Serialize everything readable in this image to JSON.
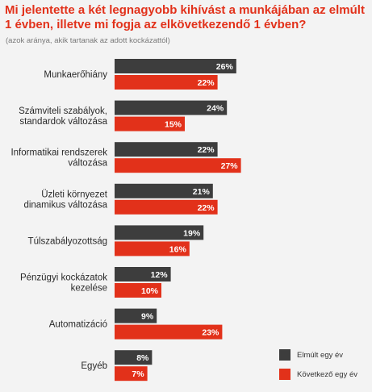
{
  "chart_data": {
    "type": "bar",
    "orientation": "horizontal",
    "title": "Mi jelentette a két legnagyobb kihívást a munkájában az elmúlt 1 évben, illetve mi fogja az elkövetkezendő 1 évben?",
    "subtitle": "(azok aránya, akik tartanak az adott kockázattól)",
    "categories": [
      "Munkaerőhiány",
      "Számviteli szabályok, standardok változása",
      "Informatikai rendszerek változása",
      "Üzleti környezet dinamikus változása",
      "Túlszabályozottság",
      "Pénzügyi kockázatok kezelése",
      "Automatizáció",
      "Egyéb"
    ],
    "category_lines": [
      [
        "Munkaerőhiány"
      ],
      [
        "Számviteli szabályok,",
        "standardok változása"
      ],
      [
        "Informatikai rendszerek",
        "változása"
      ],
      [
        "Üzleti környezet",
        "dinamikus változása"
      ],
      [
        "Túlszabályozottság"
      ],
      [
        "Pénzügyi kockázatok",
        "kezelése"
      ],
      [
        "Automatizáció"
      ],
      [
        "Egyéb"
      ]
    ],
    "series": [
      {
        "name": "Elmúlt egy év",
        "color": "#3d3d3d",
        "values": [
          26,
          24,
          22,
          21,
          19,
          12,
          9,
          8
        ]
      },
      {
        "name": "Következő egy év",
        "color": "#e2311a",
        "values": [
          22,
          15,
          27,
          22,
          16,
          10,
          23,
          7
        ]
      }
    ],
    "value_suffix": "%",
    "xlim": [
      0,
      30
    ],
    "grid": false,
    "legend_position": "bottom-right"
  }
}
